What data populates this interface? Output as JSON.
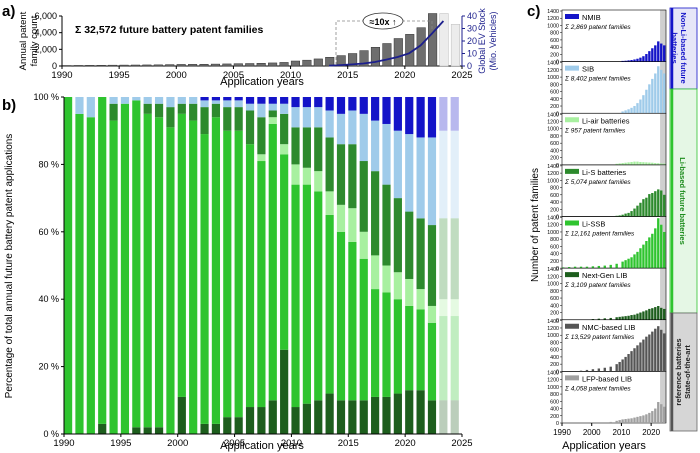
{
  "panel_labels": {
    "a": "a)",
    "b": "b)",
    "c": "c)"
  },
  "colors": {
    "gray_bar": "#6e6e6e",
    "light_bar": "#cfcfcf",
    "navy": "#1c1f8c",
    "nmib": "#1414c8",
    "sib": "#9fcbea",
    "liair": "#a8f0a0",
    "lis": "#2d8a2d",
    "lissb": "#2fc42f",
    "nextgen": "#1d5e1d",
    "nmc": "#555555",
    "lfp": "#a0a0a0",
    "band_nonli": "#1414c8",
    "band_li": "#2fc42f",
    "band_ref": "#666666"
  },
  "chart_data": [
    {
      "id": "a",
      "type": "bar",
      "title": "Σ 32,572 future battery patent families",
      "xlabel": "Application years",
      "ylabel": "Annual patent family count",
      "y2label": "Global EV Stock (Mio. Vehicles)",
      "annotation": "≈10x ↑",
      "x": [
        1990,
        1991,
        1992,
        1993,
        1994,
        1995,
        1996,
        1997,
        1998,
        1999,
        2000,
        2001,
        2002,
        2003,
        2004,
        2005,
        2006,
        2007,
        2008,
        2009,
        2010,
        2011,
        2012,
        2013,
        2014,
        2015,
        2016,
        2017,
        2018,
        2019,
        2020,
        2021,
        2022,
        2023,
        2024
      ],
      "values": [
        60,
        70,
        80,
        90,
        100,
        110,
        120,
        130,
        140,
        170,
        190,
        200,
        210,
        230,
        250,
        280,
        300,
        330,
        370,
        430,
        600,
        700,
        850,
        1050,
        1250,
        1500,
        1850,
        2250,
        2700,
        3300,
        3800,
        4600,
        6400,
        6300,
        5000
      ],
      "estimated_years": [
        2023,
        2024
      ],
      "xlim": [
        1990,
        2025
      ],
      "xticks": [
        1990,
        1995,
        2000,
        2005,
        2010,
        2015,
        2020,
        2025
      ],
      "ylim": [
        0,
        6000
      ],
      "yticks": [
        0,
        2000,
        4000,
        6000
      ],
      "y2lim": [
        0,
        40
      ],
      "y2ticks": [
        0,
        10,
        20,
        30,
        40
      ],
      "ev_stock": {
        "x": [
          2013,
          2014,
          2015,
          2016,
          2017,
          2018,
          2019,
          2020,
          2021,
          2022,
          2023
        ],
        "y": [
          0.3,
          0.7,
          1.3,
          2,
          3.2,
          5.1,
          7.2,
          10.2,
          16.5,
          26,
          36
        ]
      }
    },
    {
      "id": "b",
      "type": "bar",
      "stacked": true,
      "ylabel": "Percentage of total annual future battery patent applications",
      "xlabel": "Application years",
      "xlim": [
        1990,
        2025
      ],
      "xticks": [
        1990,
        1995,
        2000,
        2005,
        2010,
        2015,
        2020,
        2025
      ],
      "yticks": [
        "0 %",
        "20 %",
        "40 %",
        "60 %",
        "80 %",
        "100 %"
      ],
      "ylim": [
        0,
        100
      ],
      "series_order": [
        "Next-Gen LIB",
        "Li-SSB",
        "Li-air batteries",
        "Li-S batteries",
        "SIB",
        "NMIB"
      ],
      "estimated_years": [
        2023,
        2024
      ],
      "x": [
        1990,
        1991,
        1992,
        1993,
        1994,
        1995,
        1996,
        1997,
        1998,
        1999,
        2000,
        2001,
        2002,
        2003,
        2004,
        2005,
        2006,
        2007,
        2008,
        2009,
        2010,
        2011,
        2012,
        2013,
        2014,
        2015,
        2016,
        2017,
        2018,
        2019,
        2020,
        2021,
        2022,
        2023,
        2024
      ],
      "series": [
        {
          "name": "Next-Gen LIB",
          "values": [
            0,
            0,
            0,
            3,
            0,
            0,
            2,
            2,
            2,
            0,
            11,
            0,
            3,
            3,
            5,
            5,
            8,
            8,
            10,
            25,
            8,
            9,
            10,
            12,
            10,
            10,
            10,
            11,
            11,
            12,
            13,
            13,
            10,
            10,
            10
          ]
        },
        {
          "name": "Li-SSB",
          "values": [
            100,
            95,
            94,
            97,
            93,
            98,
            97,
            93,
            92,
            91,
            84,
            93,
            86,
            91,
            85,
            85,
            78,
            73,
            82,
            58,
            66,
            65,
            62,
            53,
            50,
            47,
            42,
            32,
            31,
            28,
            25,
            24,
            23,
            25,
            25
          ]
        },
        {
          "name": "Li-air batteries",
          "values": [
            0,
            0,
            0,
            0,
            0,
            0,
            0,
            0,
            0,
            0,
            0,
            0,
            0,
            0,
            0,
            0,
            0,
            2,
            2,
            3,
            6,
            5,
            6,
            7,
            8,
            10,
            8,
            10,
            8,
            8,
            8,
            6,
            5,
            5,
            5
          ]
        },
        {
          "name": "Li-S batteries",
          "values": [
            0,
            0,
            0,
            0,
            5,
            0,
            0,
            3,
            4,
            6,
            3,
            5,
            8,
            4,
            7,
            7,
            10,
            11,
            2,
            9,
            11,
            12,
            13,
            16,
            18,
            19,
            21,
            25,
            24,
            22,
            20,
            21,
            24,
            24,
            24
          ]
        },
        {
          "name": "SIB",
          "values": [
            0,
            5,
            6,
            0,
            2,
            2,
            1,
            2,
            2,
            3,
            2,
            2,
            2,
            1,
            2,
            2,
            2,
            4,
            2,
            3,
            6,
            6,
            6,
            8,
            9,
            10,
            14,
            15,
            18,
            20,
            23,
            24,
            26,
            26,
            26
          ]
        },
        {
          "name": "NMIB",
          "values": [
            0,
            0,
            0,
            0,
            0,
            0,
            0,
            0,
            0,
            0,
            0,
            0,
            1,
            1,
            1,
            1,
            2,
            2,
            2,
            2,
            3,
            3,
            3,
            4,
            5,
            4,
            5,
            7,
            8,
            10,
            11,
            12,
            12,
            10,
            10
          ]
        }
      ]
    },
    {
      "id": "c",
      "type": "bar",
      "multiples": true,
      "xlabel": "Application years",
      "ylabel": "Number of patent families",
      "xlim": [
        1990,
        2025
      ],
      "xticks": [
        1990,
        2000,
        2010,
        2020
      ],
      "ylim": [
        0,
        1400
      ],
      "yticks": [
        0,
        200,
        400,
        600,
        800,
        1000,
        1200,
        1400
      ],
      "panels": [
        {
          "name": "NMIB",
          "sum": "Σ 2,869 patent families",
          "color_key": "nmib",
          "x": [
            2010,
            2011,
            2012,
            2013,
            2014,
            2015,
            2016,
            2017,
            2018,
            2019,
            2020,
            2021,
            2022,
            2023,
            2024
          ],
          "values": [
            20,
            25,
            35,
            45,
            60,
            80,
            110,
            150,
            210,
            290,
            370,
            450,
            560,
            500,
            450
          ]
        },
        {
          "name": "SIB",
          "sum": "Σ 8,402 patent families",
          "color_key": "sib",
          "x": [
            2010,
            2011,
            2012,
            2013,
            2014,
            2015,
            2016,
            2017,
            2018,
            2019,
            2020,
            2021,
            2022,
            2023,
            2024
          ],
          "values": [
            50,
            80,
            110,
            150,
            200,
            280,
            380,
            500,
            650,
            800,
            950,
            1100,
            1300,
            1200,
            1100
          ]
        },
        {
          "name": "Li-air batteries",
          "sum": "Σ 957 patent families",
          "color_key": "liair",
          "x": [
            2008,
            2009,
            2010,
            2011,
            2012,
            2013,
            2014,
            2015,
            2016,
            2017,
            2018,
            2019,
            2020,
            2021,
            2022,
            2023,
            2024
          ],
          "values": [
            30,
            40,
            50,
            60,
            70,
            80,
            90,
            90,
            80,
            75,
            70,
            65,
            60,
            50,
            45,
            40,
            35
          ]
        },
        {
          "name": "Li-S batteries",
          "sum": "Σ 5,074 patent families",
          "color_key": "lis",
          "x": [
            2008,
            2009,
            2010,
            2011,
            2012,
            2013,
            2014,
            2015,
            2016,
            2017,
            2018,
            2019,
            2020,
            2021,
            2022,
            2023,
            2024
          ],
          "values": [
            20,
            30,
            50,
            80,
            100,
            150,
            220,
            300,
            380,
            480,
            520,
            620,
            650,
            700,
            750,
            720,
            600
          ]
        },
        {
          "name": "Li-SSB",
          "sum": "Σ 12,161 patent families",
          "color_key": "lissb",
          "x": [
            1990,
            1992,
            1994,
            1996,
            1998,
            2000,
            2002,
            2004,
            2006,
            2008,
            2010,
            2011,
            2012,
            2013,
            2014,
            2015,
            2016,
            2017,
            2018,
            2019,
            2020,
            2021,
            2022,
            2023,
            2024
          ],
          "values": [
            20,
            30,
            40,
            40,
            40,
            50,
            60,
            70,
            90,
            120,
            180,
            220,
            260,
            300,
            380,
            450,
            550,
            650,
            750,
            850,
            950,
            1100,
            1380,
            1200,
            1000
          ]
        },
        {
          "name": "Next-Gen LIB",
          "sum": "Σ 3,109 patent families",
          "color_key": "nextgen",
          "x": [
            2000,
            2002,
            2004,
            2006,
            2008,
            2009,
            2010,
            2011,
            2012,
            2013,
            2014,
            2015,
            2016,
            2017,
            2018,
            2019,
            2020,
            2021,
            2022,
            2023,
            2024
          ],
          "values": [
            20,
            30,
            40,
            50,
            70,
            80,
            90,
            100,
            110,
            130,
            140,
            170,
            200,
            230,
            260,
            300,
            320,
            350,
            380,
            330,
            300
          ]
        },
        {
          "name": "NMC-based LIB",
          "sum": "Σ 13,529 patent families",
          "color_key": "nmc",
          "x": [
            1996,
            1998,
            2000,
            2002,
            2004,
            2006,
            2008,
            2009,
            2010,
            2011,
            2012,
            2013,
            2014,
            2015,
            2016,
            2017,
            2018,
            2019,
            2020,
            2021,
            2022,
            2023,
            2024
          ],
          "values": [
            20,
            40,
            60,
            80,
            100,
            130,
            200,
            260,
            330,
            400,
            480,
            560,
            640,
            720,
            800,
            880,
            960,
            1020,
            1100,
            1180,
            1250,
            1150,
            1050
          ]
        },
        {
          "name": "LFP-based LIB",
          "sum": "Σ 4,058 patent families",
          "color_key": "lfp",
          "x": [
            2006,
            2008,
            2009,
            2010,
            2011,
            2012,
            2013,
            2014,
            2015,
            2016,
            2017,
            2018,
            2019,
            2020,
            2021,
            2022,
            2023,
            2024
          ],
          "values": [
            30,
            60,
            80,
            100,
            110,
            120,
            130,
            150,
            170,
            190,
            210,
            240,
            280,
            330,
            400,
            580,
            520,
            450
          ]
        }
      ],
      "group_labels": [
        "Non-Li-based future batteries",
        "Li-based future batteries",
        "State-of-the-art reference batteries"
      ]
    }
  ]
}
